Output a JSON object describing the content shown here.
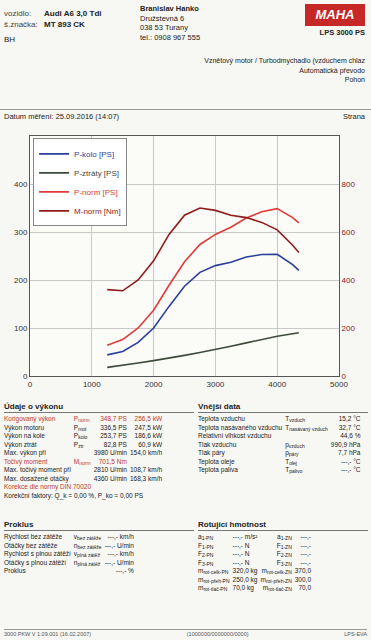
{
  "header": {
    "fields": [
      [
        "vozidlo:",
        "Audi A6 3,0 Tdi"
      ],
      [
        "š.značka:",
        "MT 893 CK"
      ]
    ],
    "operator": "BH",
    "company": [
      "Branislav Hanko",
      "Družstevná 6",
      "038 53 Turany",
      "tel.: 0908 967 555"
    ],
    "brand": "MAHA",
    "model": "LPS 3000 PS",
    "engine": [
      "Vznětový motor / Turbodmychadlo (vzduchem chlaz",
      "Automatická převodo",
      "Pohon"
    ],
    "date": "Datum měření: 25.09.2016 (14:07)",
    "page": "Strana"
  },
  "chart_data": {
    "type": "line",
    "x": [
      1250,
      1500,
      1750,
      2000,
      2250,
      2500,
      2750,
      3000,
      3250,
      3500,
      3750,
      4000,
      4250,
      4350
    ],
    "series": [
      {
        "name": "P-kolo [PS]",
        "color": "#2a3f9d",
        "values": [
          44,
          51,
          70,
          100,
          145,
          187,
          216,
          230,
          237,
          248,
          253,
          253.7,
          232,
          220
        ]
      },
      {
        "name": "P-ztráty [PS]",
        "color": "#3c4a3c",
        "values": [
          18,
          22,
          27,
          32,
          37,
          43,
          49,
          55,
          62,
          69,
          76,
          82.8,
          88,
          90
        ]
      },
      {
        "name": "P-norm [PS]",
        "color": "#e03b3b",
        "values": [
          64,
          76,
          100,
          137,
          189,
          238,
          274,
          295,
          310,
          329,
          342,
          348.7,
          330,
          319
        ]
      },
      {
        "name": "M-norm [Nm]",
        "color": "#8e1c1c",
        "axis": "y2",
        "values": [
          360,
          355,
          400,
          480,
          590,
          670,
          700,
          690,
          670,
          660,
          640,
          609,
          545,
          515
        ]
      }
    ],
    "xlim": [
      0,
      5000
    ],
    "xticks": [
      0,
      1000,
      2000,
      3000,
      4000,
      5000
    ],
    "ylim": [
      0,
      500
    ],
    "yticks": [
      0,
      100,
      200,
      300,
      400
    ],
    "y2lim": [
      0,
      1000
    ],
    "y2ticks": [
      0,
      200,
      400,
      600,
      800
    ],
    "grid": true,
    "legend": "top left"
  },
  "performance": {
    "title": "Údaje o výkonu",
    "rows": [
      {
        "cells": [
          "Korigovaný výkon",
          {
            "sym": "P",
            "sub": "norm"
          },
          "348,7 PS",
          "256,5 kW"
        ],
        "color": "#c0392b"
      },
      {
        "cells": [
          "Výkon motoru",
          {
            "sym": "P",
            "sub": "mot"
          },
          "336,5 PS",
          "247,5 kW"
        ]
      },
      {
        "cells": [
          "Výkon na kole",
          {
            "sym": "P",
            "sub": "kolo"
          },
          "253,7 PS",
          "186,6 kW"
        ]
      },
      {
        "cells": [
          "Výkon ztrát",
          {
            "sym": "P",
            "sub": "ztr"
          },
          "82,8 PS",
          "60,9 kW"
        ]
      },
      {
        "cells": [
          "Max. výkon při",
          null,
          "3980 U/min",
          "154,0 km/h"
        ]
      },
      {
        "cells": [
          "Točivý moment",
          {
            "sym": "M",
            "sub": "norm"
          },
          "701,5 Nm",
          null
        ],
        "color": "#c0392b"
      },
      {
        "cells": [
          "Max. točivý moment při",
          null,
          "2810 U/min",
          "108,7 km/h"
        ]
      },
      {
        "cells": [
          "Max. dosažené otáčky",
          null,
          "4360 U/min",
          "168,3 km/h"
        ]
      }
    ],
    "notes": [
      {
        "text": "Korekce dle normy DIN 70020",
        "color": "#c0392b"
      },
      {
        "text": "Korekční faktory: Q_k = 0,00 %, P_ko = 0,00 PS"
      }
    ]
  },
  "environment": {
    "title": "Vnější data",
    "rows": [
      {
        "cells": [
          "Teplota vzduchu",
          {
            "sym": "T",
            "sub": "vzduch"
          },
          "15,2 °C"
        ]
      },
      {
        "cells": [
          "Teplota nasávaného vzduchu",
          {
            "sym": "T",
            "sub": "nasávaný vzduch"
          },
          "32,7 °C"
        ]
      },
      {
        "cells": [
          "Relativní vlhkost vzduchu",
          null,
          "44,6 %"
        ]
      },
      {
        "cells": [
          "Tlak vzduchu",
          {
            "sym": "p",
            "sub": "vzduch"
          },
          "990,9 hPa"
        ]
      },
      {
        "cells": [
          "Tlak páry",
          {
            "sym": "p",
            "sub": "páry"
          },
          "7,7 hPa"
        ]
      },
      {
        "cells": [
          "Teplota oleje",
          {
            "sym": "T",
            "sub": "olej"
          },
          "---,- °C"
        ]
      },
      {
        "cells": [
          "Teplota paliva",
          {
            "sym": "T",
            "sub": "palivo"
          },
          "---,- °C"
        ]
      }
    ]
  },
  "slip": {
    "title": "Proklus",
    "rows": [
      {
        "cells": [
          "Rychlost bez zátěže",
          {
            "sym": "v",
            "sub": "bez zátěže"
          },
          "---,- km/h"
        ]
      },
      {
        "cells": [
          "Otáčky bez zátěže",
          {
            "sym": "n",
            "sub": "bez zátěže"
          },
          "---,- U/min"
        ]
      },
      {
        "cells": [
          "Rychlost s plnou zátěží",
          {
            "sym": "v",
            "sub": "plná zátěž"
          },
          "---,- km/h"
        ]
      },
      {
        "cells": [
          "Otáčky s plnou zátěží",
          {
            "sym": "n",
            "sub": "plná zátěž"
          },
          "---,- U/min"
        ]
      },
      {
        "cells": [
          "Proklus",
          null,
          "---,- %"
        ]
      }
    ]
  },
  "rotating_mass": {
    "title": "Rotující hmotnost",
    "rows": [
      {
        "cells": [
          {
            "sym": "a",
            "sub": "1-PN"
          },
          "---,- m/s²",
          {
            "sym": "a",
            "sub": "1-ZN"
          },
          "---,-"
        ]
      },
      {
        "cells": [
          {
            "sym": "F",
            "sub": "1-PN"
          },
          "---,- N",
          {
            "sym": "F",
            "sub": "1-ZN"
          },
          "---,-"
        ]
      },
      {
        "cells": [
          {
            "sym": "F",
            "sub": "2-PN"
          },
          "---,- N",
          {
            "sym": "F",
            "sub": "2-ZN"
          },
          "---,-"
        ]
      },
      {
        "cells": [
          {
            "sym": "F",
            "sub": "3-PN"
          },
          "---,- N",
          {
            "sym": "F",
            "sub": "3-ZN"
          },
          "---,-"
        ]
      },
      {
        "cells": [
          {
            "sym": "m",
            "sub": "rot-celk-PN"
          },
          "320,0 kg",
          {
            "sym": "m",
            "sub": "rot-celk-ZN"
          },
          "370,0"
        ]
      },
      {
        "cells": [
          {
            "sym": "m",
            "sub": "rot-přeh-PN"
          },
          "250,0 kg",
          {
            "sym": "m",
            "sub": "rot-přeh-ZN"
          },
          "300,0"
        ]
      },
      {
        "cells": [
          {
            "sym": "m",
            "sub": "rot-tlač-PN"
          },
          "70,0 kg",
          {
            "sym": "m",
            "sub": "rot-tlač-ZN"
          },
          "70,0"
        ]
      }
    ]
  },
  "footer": [
    "3000 PKW V 1.09.001 (16.02.2007)",
    "(1000000/0000000/0000)",
    "LPS-EVA"
  ]
}
